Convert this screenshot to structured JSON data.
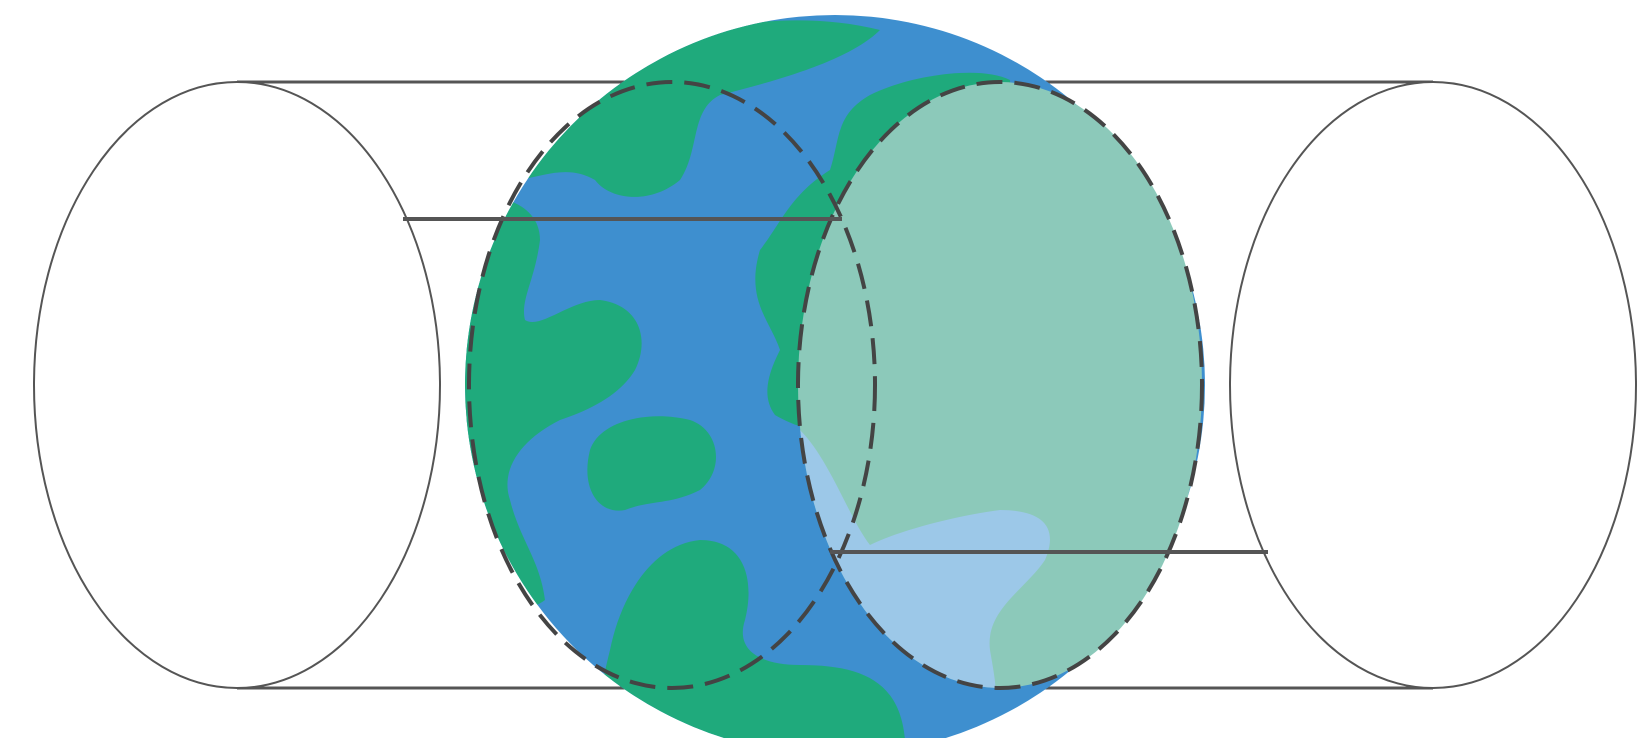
{
  "diagram": {
    "description_items": [
      "left-cylinder-end-ellipse",
      "right-cylinder-end-ellipse",
      "earth-globe",
      "inner-tunnel-dashed-ellipses",
      "transparent-overlay-hemisphere",
      "connecting-lines"
    ],
    "colors": {
      "ocean": "#3E8FCF",
      "land": "#1FAA7C",
      "overlay_land": "#8CC9BA",
      "overlay_ocean": "#9CC8E8",
      "line": "#555555",
      "outline": "#444444",
      "background": "#FFFFFF"
    }
  }
}
